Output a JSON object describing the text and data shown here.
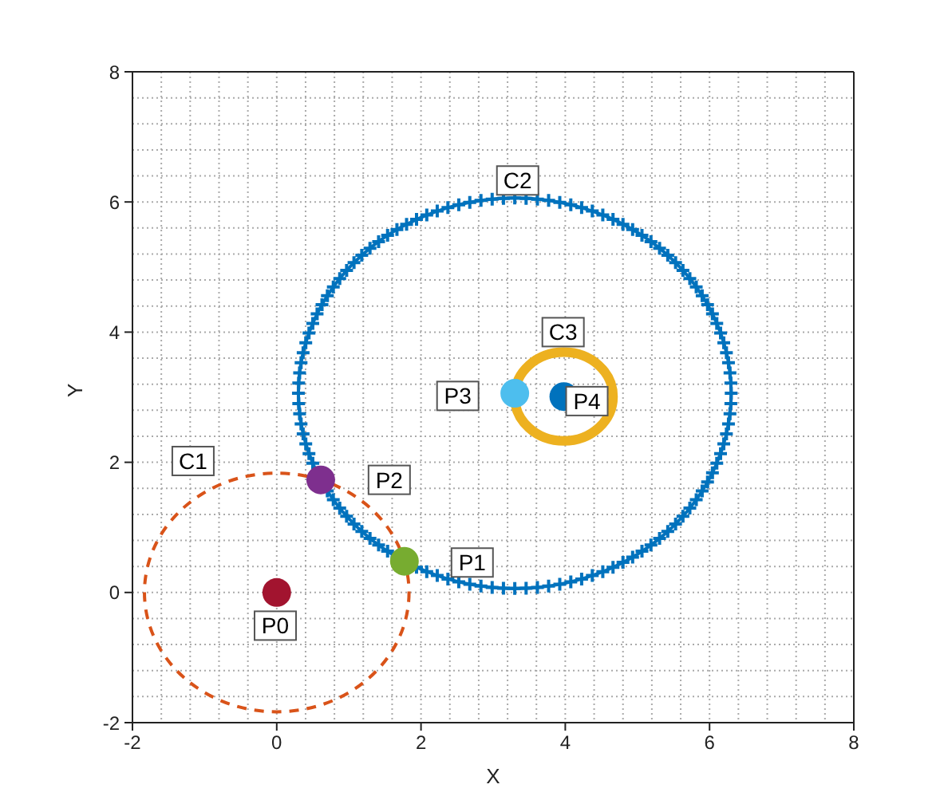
{
  "chart_data": {
    "type": "scatter",
    "xlabel": "X",
    "ylabel": "Y",
    "xlim": [
      -2,
      8
    ],
    "ylim": [
      -2,
      8
    ],
    "xticks": [
      -2,
      0,
      2,
      4,
      6,
      8
    ],
    "yticks": [
      -2,
      0,
      2,
      4,
      6,
      8
    ],
    "grid": true,
    "series": [
      {
        "marker": "circle",
        "color": "#a2142f",
        "x": [
          0
        ],
        "values": [
          0
        ]
      },
      {
        "marker": "circle",
        "color": "#77ac30",
        "x": [
          1.77
        ],
        "values": [
          0.48
        ]
      },
      {
        "marker": "circle",
        "color": "#7e2f8e",
        "x": [
          0.61
        ],
        "values": [
          1.73
        ]
      },
      {
        "marker": "circle",
        "color": "#4dbeee",
        "x": [
          3.3
        ],
        "values": [
          3.06
        ]
      },
      {
        "marker": "circle",
        "color": "#0072bd",
        "x": [
          3.98
        ],
        "values": [
          3.01
        ]
      }
    ],
    "annotations": [
      {
        "text": "C1",
        "x": -1.16,
        "y": 2.02
      },
      {
        "text": "C2",
        "x": 3.34,
        "y": 6.33
      },
      {
        "text": "C3",
        "x": 3.97,
        "y": 4.0
      },
      {
        "text": "P0",
        "x": -0.02,
        "y": -0.51
      },
      {
        "text": "P1",
        "x": 2.71,
        "y": 0.46
      },
      {
        "text": "P2",
        "x": 1.56,
        "y": 1.73
      },
      {
        "text": "P3",
        "x": 2.51,
        "y": 3.02
      },
      {
        "text": "P4",
        "x": 4.3,
        "y": 2.94
      }
    ]
  }
}
